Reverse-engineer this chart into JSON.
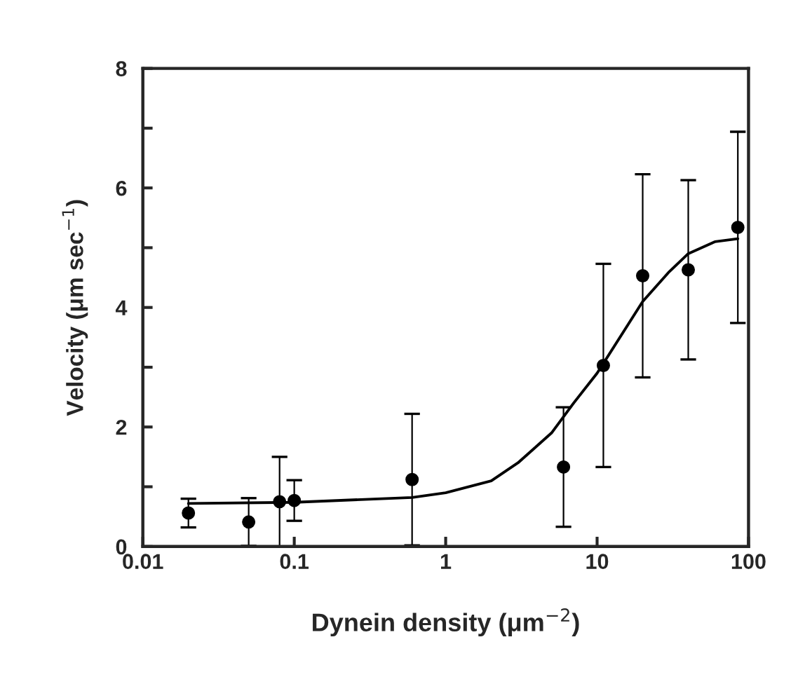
{
  "chart_data": {
    "type": "scatter",
    "xlabel": "Dynein density (μm$^{−2}$)",
    "ylabel": "Velocity (μm sec$^{−1}$)",
    "log": "x",
    "xlim": [
      0.01,
      100
    ],
    "xticks": [
      0.01,
      0.1,
      1,
      10,
      100
    ],
    "ylim": [
      0,
      8
    ],
    "yticks": [
      0,
      {
        "value": 1,
        "label": null
      },
      2,
      {
        "value": 3,
        "label": null
      },
      4,
      {
        "value": 5,
        "label": null
      },
      6,
      {
        "value": 7,
        "label": null
      },
      8
    ],
    "grid": false,
    "legend": false,
    "series": [
      {
        "color": "#000000",
        "marker": "circle",
        "x": [
          0.02,
          0.05,
          0.08,
          0.1,
          0.6,
          6,
          11,
          20,
          40,
          85
        ],
        "values": [
          0.56,
          0.41,
          0.75,
          0.77,
          1.12,
          1.33,
          3.03,
          4.53,
          4.63,
          5.34
        ],
        "errors": [
          0.24,
          0.4,
          0.75,
          0.34,
          1.1,
          1.0,
          1.7,
          1.7,
          1.5,
          1.6
        ]
      },
      {
        "type": "line",
        "color": "#000000",
        "marker": "none",
        "line_style": "solid",
        "x": [
          0.02,
          0.1,
          0.6,
          1,
          2,
          3,
          5,
          7,
          10,
          15,
          20,
          30,
          40,
          60,
          85
        ],
        "values": [
          0.72,
          0.74,
          0.82,
          0.9,
          1.1,
          1.4,
          1.9,
          2.4,
          2.9,
          3.6,
          4.1,
          4.6,
          4.9,
          5.1,
          5.15
        ]
      }
    ]
  }
}
